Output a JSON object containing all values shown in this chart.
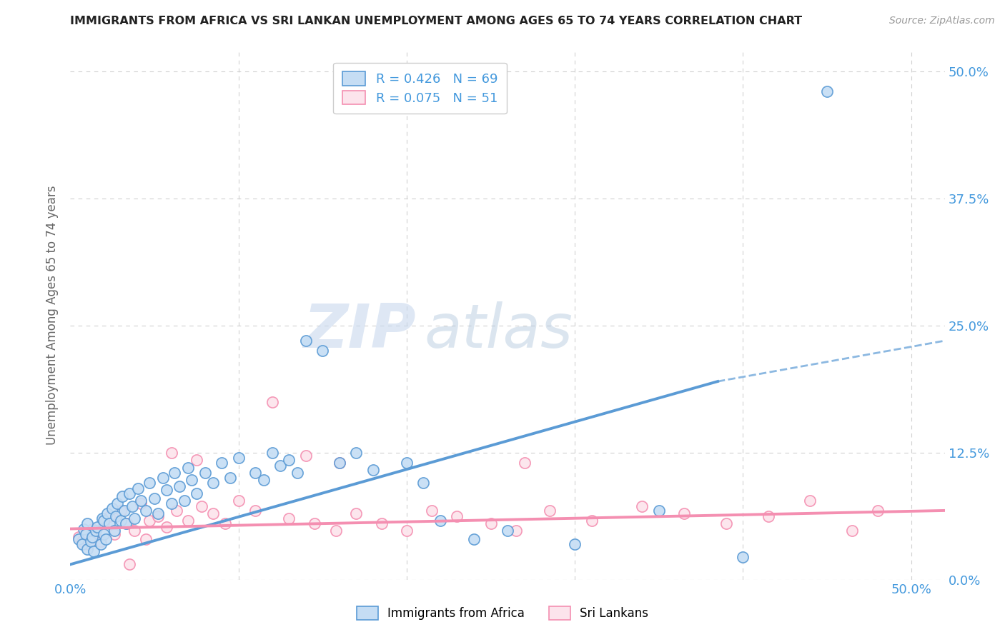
{
  "title": "IMMIGRANTS FROM AFRICA VS SRI LANKAN UNEMPLOYMENT AMONG AGES 65 TO 74 YEARS CORRELATION CHART",
  "source": "Source: ZipAtlas.com",
  "ylabel": "Unemployment Among Ages 65 to 74 years",
  "xlim": [
    0.0,
    0.52
  ],
  "ylim": [
    0.0,
    0.52
  ],
  "yticks_right": [
    0.0,
    0.125,
    0.25,
    0.375,
    0.5
  ],
  "ytick_right_labels": [
    "0.0%",
    "12.5%",
    "25.0%",
    "37.5%",
    "50.0%"
  ],
  "blue_color": "#5b9bd5",
  "blue_fill": "#c5ddf4",
  "pink_color": "#f48fb1",
  "pink_fill": "#fce4ec",
  "legend_blue_R": "R = 0.426",
  "legend_blue_N": "N = 69",
  "legend_pink_R": "R = 0.075",
  "legend_pink_N": "N = 51",
  "legend_label_blue": "Immigrants from Africa",
  "legend_label_pink": "Sri Lankans",
  "watermark_ZIP": "ZIP",
  "watermark_atlas": "atlas",
  "blue_scatter_x": [
    0.005,
    0.007,
    0.008,
    0.009,
    0.01,
    0.01,
    0.012,
    0.013,
    0.014,
    0.015,
    0.016,
    0.018,
    0.019,
    0.02,
    0.02,
    0.021,
    0.022,
    0.023,
    0.025,
    0.026,
    0.027,
    0.028,
    0.03,
    0.031,
    0.032,
    0.033,
    0.035,
    0.037,
    0.038,
    0.04,
    0.042,
    0.045,
    0.047,
    0.05,
    0.052,
    0.055,
    0.057,
    0.06,
    0.062,
    0.065,
    0.068,
    0.07,
    0.072,
    0.075,
    0.08,
    0.085,
    0.09,
    0.095,
    0.1,
    0.11,
    0.115,
    0.12,
    0.125,
    0.13,
    0.135,
    0.14,
    0.15,
    0.16,
    0.17,
    0.18,
    0.2,
    0.21,
    0.22,
    0.24,
    0.26,
    0.3,
    0.35,
    0.4,
    0.45
  ],
  "blue_scatter_y": [
    0.04,
    0.035,
    0.05,
    0.045,
    0.03,
    0.055,
    0.038,
    0.042,
    0.028,
    0.048,
    0.052,
    0.035,
    0.06,
    0.045,
    0.058,
    0.04,
    0.065,
    0.055,
    0.07,
    0.048,
    0.062,
    0.075,
    0.058,
    0.082,
    0.068,
    0.055,
    0.085,
    0.072,
    0.06,
    0.09,
    0.078,
    0.068,
    0.095,
    0.08,
    0.065,
    0.1,
    0.088,
    0.075,
    0.105,
    0.092,
    0.078,
    0.11,
    0.098,
    0.085,
    0.105,
    0.095,
    0.115,
    0.1,
    0.12,
    0.105,
    0.098,
    0.125,
    0.112,
    0.118,
    0.105,
    0.235,
    0.225,
    0.115,
    0.125,
    0.108,
    0.115,
    0.095,
    0.058,
    0.04,
    0.048,
    0.035,
    0.068,
    0.022,
    0.48
  ],
  "pink_scatter_x": [
    0.005,
    0.007,
    0.009,
    0.011,
    0.013,
    0.015,
    0.018,
    0.02,
    0.023,
    0.026,
    0.03,
    0.034,
    0.038,
    0.042,
    0.047,
    0.052,
    0.057,
    0.063,
    0.07,
    0.078,
    0.085,
    0.092,
    0.1,
    0.11,
    0.12,
    0.13,
    0.145,
    0.158,
    0.17,
    0.185,
    0.2,
    0.215,
    0.23,
    0.25,
    0.265,
    0.285,
    0.31,
    0.34,
    0.365,
    0.39,
    0.415,
    0.44,
    0.465,
    0.48,
    0.06,
    0.075,
    0.035,
    0.14,
    0.16,
    0.27,
    0.045
  ],
  "pink_scatter_y": [
    0.042,
    0.038,
    0.046,
    0.035,
    0.05,
    0.042,
    0.038,
    0.055,
    0.062,
    0.045,
    0.068,
    0.055,
    0.048,
    0.075,
    0.058,
    0.062,
    0.052,
    0.068,
    0.058,
    0.072,
    0.065,
    0.055,
    0.078,
    0.068,
    0.175,
    0.06,
    0.055,
    0.048,
    0.065,
    0.055,
    0.048,
    0.068,
    0.062,
    0.055,
    0.048,
    0.068,
    0.058,
    0.072,
    0.065,
    0.055,
    0.062,
    0.078,
    0.048,
    0.068,
    0.125,
    0.118,
    0.015,
    0.122,
    0.115,
    0.115,
    0.04
  ],
  "blue_line_y_start": 0.015,
  "blue_line_y_at_solid_end": 0.195,
  "blue_line_solid_end_x": 0.385,
  "blue_line_y_end": 0.235,
  "pink_line_y_start": 0.05,
  "pink_line_y_end": 0.068,
  "background_color": "#ffffff",
  "grid_color": "#d0d0d0",
  "title_color": "#222222",
  "tick_label_color": "#4499dd"
}
